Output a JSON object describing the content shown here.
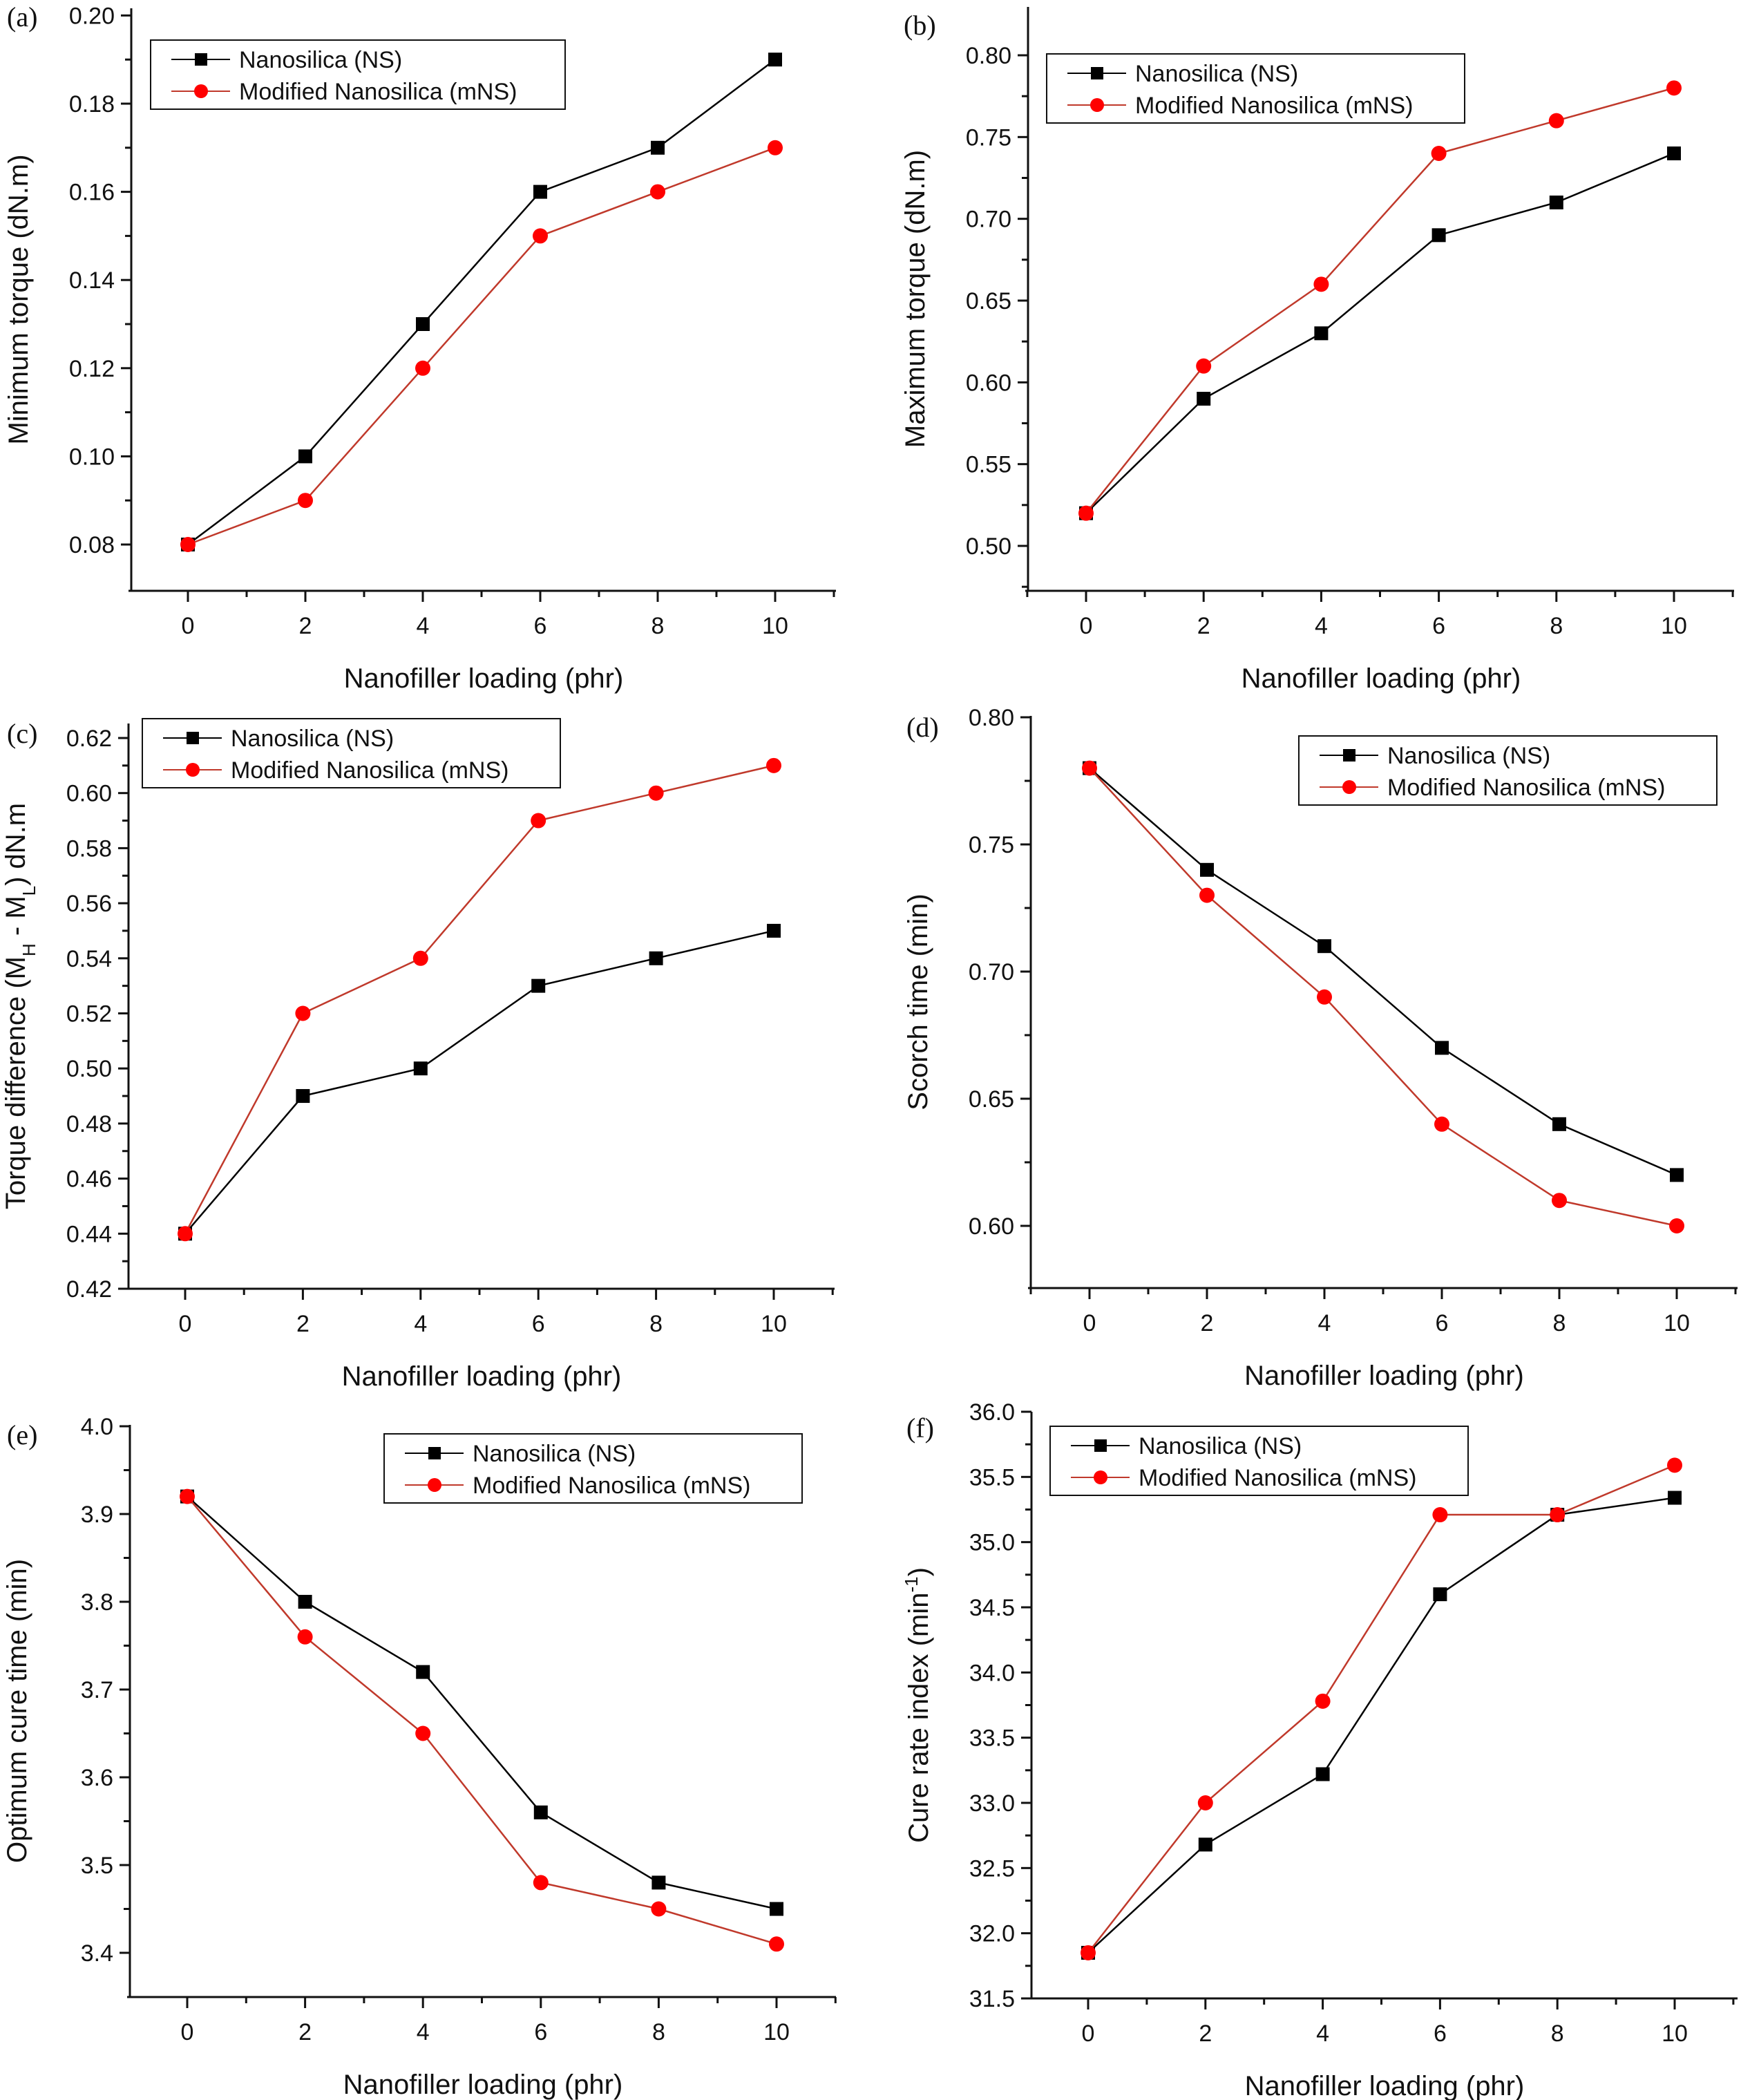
{
  "figure": {
    "series_styles": {
      "NS": {
        "color": "#000000",
        "marker": "square"
      },
      "mNS": {
        "color": "#ff0000",
        "line_color": "#c0392b",
        "marker": "circle"
      }
    }
  },
  "chart_data": [
    {
      "id": "a",
      "panel_label": "(a)",
      "type": "line",
      "title": "",
      "xlabel": "Nanofiller loading (phr)",
      "ylabel": "Minimum torque (dN.m)",
      "x": [
        0,
        2,
        4,
        6,
        8,
        10
      ],
      "xlim": [
        -1,
        11
      ],
      "xticks": [
        "0",
        "2",
        "4",
        "6",
        "8",
        "10"
      ],
      "ylim": [
        0.07,
        0.2
      ],
      "yticks": [
        "0.08",
        "0.10",
        "0.12",
        "0.14",
        "0.16",
        "0.18",
        "0.20"
      ],
      "ytick_values": [
        0.08,
        0.1,
        0.12,
        0.14,
        0.16,
        0.18,
        0.2
      ],
      "legend": "top-left",
      "series": [
        {
          "name": "Nanosilica (NS)",
          "key": "NS",
          "values": [
            0.08,
            0.1,
            0.13,
            0.16,
            0.17,
            0.19
          ]
        },
        {
          "name": "Modified Nanosilica (mNS)",
          "key": "mNS",
          "values": [
            0.08,
            0.09,
            0.12,
            0.15,
            0.16,
            0.17
          ]
        }
      ]
    },
    {
      "id": "b",
      "panel_label": "(b)",
      "type": "line",
      "title": "",
      "xlabel": "Nanofiller loading (phr)",
      "ylabel": "Maximum torque (dN.m)",
      "x": [
        0,
        2,
        4,
        6,
        8,
        10
      ],
      "xlim": [
        -1,
        11
      ],
      "xticks": [
        "0",
        "2",
        "4",
        "6",
        "8",
        "10"
      ],
      "ylim": [
        0.475,
        0.825
      ],
      "yticks": [
        "0.50",
        "0.55",
        "0.60",
        "0.65",
        "0.70",
        "0.75",
        "0.80"
      ],
      "ytick_values": [
        0.5,
        0.55,
        0.6,
        0.65,
        0.7,
        0.75,
        0.8
      ],
      "legend": "top-left",
      "series": [
        {
          "name": "Nanosilica (NS)",
          "key": "NS",
          "values": [
            0.52,
            0.59,
            0.63,
            0.69,
            0.71,
            0.74
          ]
        },
        {
          "name": "Modified Nanosilica (mNS)",
          "key": "mNS",
          "values": [
            0.52,
            0.61,
            0.66,
            0.74,
            0.76,
            0.78
          ]
        }
      ]
    },
    {
      "id": "c",
      "panel_label": "(c)",
      "type": "line",
      "title": "",
      "xlabel": "Nanofiller loading (phr)",
      "ylabel": "Torque difference (M",
      "ylabel_sub1": "H",
      "ylabel_mid": " - M",
      "ylabel_sub2": "L",
      "ylabel_end": ") dN.m",
      "x": [
        0,
        2,
        4,
        6,
        8,
        10
      ],
      "xlim": [
        -1,
        11
      ],
      "xticks": [
        "0",
        "2",
        "4",
        "6",
        "8",
        "10"
      ],
      "ylim": [
        0.42,
        0.63
      ],
      "yticks": [
        "0.42",
        "0.44",
        "0.46",
        "0.48",
        "0.50",
        "0.52",
        "0.54",
        "0.56",
        "0.58",
        "0.60",
        "0.62"
      ],
      "ytick_values": [
        0.42,
        0.44,
        0.46,
        0.48,
        0.5,
        0.52,
        0.54,
        0.56,
        0.58,
        0.6,
        0.62
      ],
      "legend": "top-left",
      "series": [
        {
          "name": "Nanosilica (NS)",
          "key": "NS",
          "values": [
            0.44,
            0.49,
            0.5,
            0.53,
            0.54,
            0.55
          ]
        },
        {
          "name": "Modified Nanosilica (mNS)",
          "key": "mNS",
          "values": [
            0.44,
            0.52,
            0.54,
            0.59,
            0.6,
            0.61
          ]
        }
      ]
    },
    {
      "id": "d",
      "panel_label": "(d)",
      "type": "line",
      "title": "",
      "xlabel": "Nanofiller loading (phr)",
      "ylabel": "Scorch time (min)",
      "x": [
        0,
        2,
        4,
        6,
        8,
        10
      ],
      "xlim": [
        -1,
        11
      ],
      "xticks": [
        "0",
        "2",
        "4",
        "6",
        "8",
        "10"
      ],
      "ylim": [
        0.575,
        0.8
      ],
      "yticks": [
        "0.60",
        "0.65",
        "0.70",
        "0.75",
        "0.80"
      ],
      "ytick_values": [
        0.6,
        0.65,
        0.7,
        0.75,
        0.8
      ],
      "legend": "top-right",
      "series": [
        {
          "name": "Nanosilica (NS)",
          "key": "NS",
          "values": [
            0.78,
            0.74,
            0.71,
            0.67,
            0.64,
            0.62
          ]
        },
        {
          "name": "Modified Nanosilica (mNS)",
          "key": "mNS",
          "values": [
            0.78,
            0.73,
            0.69,
            0.64,
            0.61,
            0.6
          ]
        }
      ]
    },
    {
      "id": "e",
      "panel_label": "(e)",
      "type": "line",
      "title": "",
      "xlabel": "Nanofiller loading (phr)",
      "ylabel": "Optimum cure time (min)",
      "x": [
        0,
        2,
        4,
        6,
        8,
        10
      ],
      "xlim": [
        -1,
        11
      ],
      "xticks": [
        "0",
        "2",
        "4",
        "6",
        "8",
        "10"
      ],
      "ylim": [
        3.35,
        4.0
      ],
      "yticks": [
        "3.4",
        "3.5",
        "3.6",
        "3.7",
        "3.8",
        "3.9",
        "4.0"
      ],
      "ytick_values": [
        3.4,
        3.5,
        3.6,
        3.7,
        3.8,
        3.9,
        4.0
      ],
      "legend": "top-right",
      "series": [
        {
          "name": "Nanosilica (NS)",
          "key": "NS",
          "values": [
            3.92,
            3.8,
            3.72,
            3.56,
            3.48,
            3.45
          ]
        },
        {
          "name": "Modified Nanosilica (mNS)",
          "key": "mNS",
          "values": [
            3.92,
            3.76,
            3.65,
            3.48,
            3.45,
            3.41
          ]
        }
      ]
    },
    {
      "id": "f",
      "panel_label": "(f)",
      "type": "line",
      "title": "",
      "xlabel": "Nanofiller loading (phr)",
      "ylabel": "Cure rate index (min",
      "ylabel_sup": "-1",
      "ylabel_end": ")",
      "x": [
        0,
        2,
        4,
        6,
        8,
        10
      ],
      "xlim": [
        -1,
        11
      ],
      "xticks": [
        "0",
        "2",
        "4",
        "6",
        "8",
        "10"
      ],
      "ylim": [
        31.5,
        36.0
      ],
      "yticks": [
        "31.5",
        "32.0",
        "32.5",
        "33.0",
        "33.5",
        "34.0",
        "34.5",
        "35.0",
        "35.5",
        "36.0"
      ],
      "ytick_values": [
        31.5,
        32.0,
        32.5,
        33.0,
        33.5,
        34.0,
        34.5,
        35.0,
        35.5,
        36.0
      ],
      "legend": "top-left",
      "series": [
        {
          "name": "Nanosilica (NS)",
          "key": "NS",
          "values": [
            31.85,
            32.68,
            33.22,
            34.6,
            35.21,
            35.34
          ]
        },
        {
          "name": "Modified Nanosilica (mNS)",
          "key": "mNS",
          "values": [
            31.85,
            33.0,
            33.78,
            35.21,
            35.21,
            35.59
          ]
        }
      ]
    }
  ]
}
